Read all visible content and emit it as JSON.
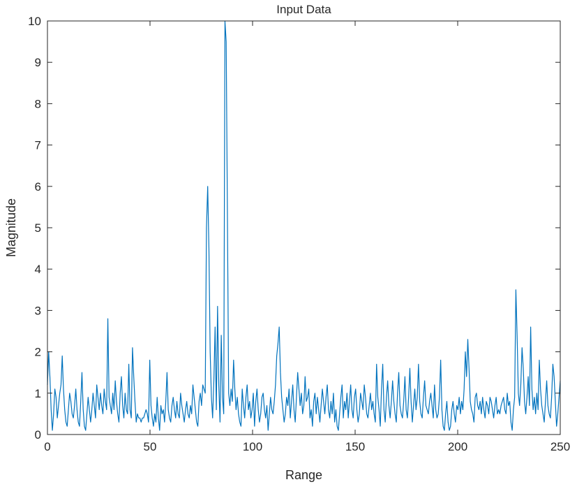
{
  "chart_data": {
    "type": "line",
    "title": "Input Data",
    "xlabel": "Range",
    "ylabel": "Magnitude",
    "xlim": [
      0,
      250
    ],
    "ylim": [
      0,
      10
    ],
    "xticks": [
      0,
      50,
      100,
      150,
      200,
      250
    ],
    "yticks": [
      0,
      1,
      2,
      3,
      4,
      5,
      6,
      7,
      8,
      9,
      10
    ],
    "xtick_labels": [
      "0",
      "50",
      "100",
      "150",
      "200",
      "250"
    ],
    "ytick_labels": [
      "0",
      "1",
      "2",
      "3",
      "4",
      "5",
      "6",
      "7",
      "8",
      "9",
      "10"
    ],
    "grid": false,
    "line_color": "#0072BD",
    "series": [
      {
        "values": [
          1.2,
          2.0,
          1.4,
          0.6,
          0.1,
          0.5,
          1.1,
          0.9,
          0.4,
          0.7,
          1.0,
          1.2,
          1.9,
          1.1,
          0.6,
          0.3,
          0.2,
          0.6,
          1.0,
          0.8,
          0.5,
          0.4,
          0.7,
          1.1,
          0.6,
          0.3,
          0.2,
          0.8,
          1.5,
          0.6,
          0.2,
          0.1,
          0.5,
          0.9,
          0.6,
          0.3,
          0.6,
          1.0,
          0.7,
          0.4,
          1.2,
          0.9,
          0.6,
          1.0,
          0.7,
          0.5,
          1.1,
          0.8,
          0.6,
          2.8,
          0.9,
          0.7,
          0.5,
          1.0,
          0.6,
          1.3,
          0.8,
          0.5,
          0.3,
          1.0,
          1.4,
          0.7,
          0.4,
          1.0,
          0.6,
          0.5,
          1.7,
          0.6,
          0.4,
          2.1,
          1.4,
          0.8,
          0.3,
          0.5,
          0.4,
          0.4,
          0.3,
          0.4,
          0.4,
          0.5,
          0.6,
          0.5,
          0.3,
          1.8,
          0.7,
          0.4,
          0.2,
          0.5,
          0.3,
          0.9,
          0.4,
          0.1,
          0.7,
          0.5,
          0.6,
          0.3,
          0.8,
          1.5,
          0.6,
          0.4,
          0.3,
          0.7,
          0.9,
          0.6,
          0.4,
          0.8,
          0.5,
          0.4,
          1.0,
          0.7,
          0.5,
          0.3,
          0.6,
          0.8,
          0.5,
          0.4,
          0.7,
          0.5,
          1.2,
          0.9,
          0.6,
          0.3,
          0.2,
          0.8,
          1.0,
          0.7,
          1.2,
          1.1,
          1.0,
          5.0,
          6.0,
          4.5,
          2.0,
          0.9,
          0.4,
          1.3,
          2.6,
          0.6,
          3.1,
          1.2,
          0.3,
          2.4,
          0.9,
          0.5,
          10.0,
          9.5,
          5.3,
          1.0,
          0.7,
          1.1,
          0.8,
          1.8,
          1.1,
          0.6,
          0.9,
          0.5,
          0.3,
          0.2,
          1.1,
          0.7,
          0.4,
          0.9,
          1.2,
          0.6,
          0.8,
          0.4,
          0.6,
          1.0,
          0.2,
          0.8,
          1.1,
          0.6,
          0.3,
          0.5,
          0.9,
          1.0,
          0.6,
          0.4,
          0.7,
          0.1,
          0.5,
          0.9,
          0.6,
          0.5,
          0.8,
          1.2,
          1.9,
          2.2,
          2.6,
          1.5,
          0.9,
          0.6,
          0.3,
          0.5,
          0.9,
          0.7,
          1.1,
          0.4,
          0.8,
          1.2,
          0.6,
          0.3,
          0.9,
          1.5,
          1.1,
          0.7,
          1.0,
          0.5,
          0.7,
          1.4,
          0.8,
          0.9,
          1.1,
          0.4,
          0.6,
          0.2,
          0.8,
          1.0,
          0.5,
          0.9,
          0.6,
          0.3,
          0.7,
          1.1,
          0.8,
          0.5,
          0.9,
          1.2,
          0.6,
          0.4,
          0.8,
          0.5,
          1.0,
          0.3,
          0.6,
          0.2,
          0.1,
          0.5,
          0.9,
          1.2,
          0.4,
          0.8,
          0.6,
          1.0,
          0.4,
          0.8,
          1.2,
          0.6,
          0.4,
          0.9,
          1.1,
          0.6,
          0.3,
          0.5,
          1.0,
          0.8,
          0.6,
          1.2,
          0.9,
          0.5,
          0.4,
          0.7,
          1.0,
          0.6,
          0.8,
          0.5,
          0.3,
          1.7,
          0.9,
          0.6,
          0.2,
          1.1,
          1.7,
          0.6,
          0.3,
          0.9,
          1.3,
          0.7,
          0.4,
          0.8,
          1.3,
          0.8,
          0.5,
          0.3,
          1.0,
          1.5,
          0.7,
          0.5,
          0.4,
          0.8,
          1.4,
          0.6,
          0.4,
          0.9,
          1.6,
          0.8,
          0.3,
          0.7,
          1.1,
          0.6,
          0.9,
          1.7,
          0.8,
          0.5,
          0.4,
          0.9,
          1.3,
          0.7,
          0.6,
          0.5,
          0.8,
          1.0,
          0.7,
          0.4,
          1.2,
          0.6,
          0.4,
          0.5,
          0.9,
          1.8,
          0.6,
          0.2,
          0.1,
          0.5,
          0.8,
          0.3,
          0.1,
          0.2,
          0.6,
          0.8,
          0.5,
          0.3,
          0.7,
          0.6,
          0.9,
          0.5,
          0.8,
          0.6,
          1.1,
          2.0,
          1.4,
          2.3,
          1.6,
          0.8,
          0.6,
          0.5,
          0.3,
          0.9,
          1.0,
          0.7,
          0.6,
          0.8,
          0.5,
          0.9,
          0.6,
          0.4,
          0.8,
          0.7,
          0.5,
          0.9,
          0.8,
          0.6,
          0.4,
          0.7,
          0.9,
          0.5,
          0.6,
          0.5,
          0.7,
          0.8,
          0.9,
          0.6,
          0.5,
          1.0,
          0.7,
          0.8,
          0.3,
          0.1,
          0.6,
          0.9,
          3.5,
          2.4,
          1.0,
          0.7,
          1.2,
          2.1,
          1.6,
          0.8,
          0.5,
          0.9,
          1.4,
          0.7,
          2.6,
          1.1,
          0.6,
          0.9,
          0.5,
          1.0,
          0.6,
          1.8,
          1.1,
          0.7,
          0.5,
          0.3,
          0.8,
          1.3,
          0.7,
          0.5,
          0.4,
          0.9,
          1.7,
          1.4,
          0.8,
          0.2,
          0.5,
          0.9,
          1.3
        ]
      }
    ]
  }
}
